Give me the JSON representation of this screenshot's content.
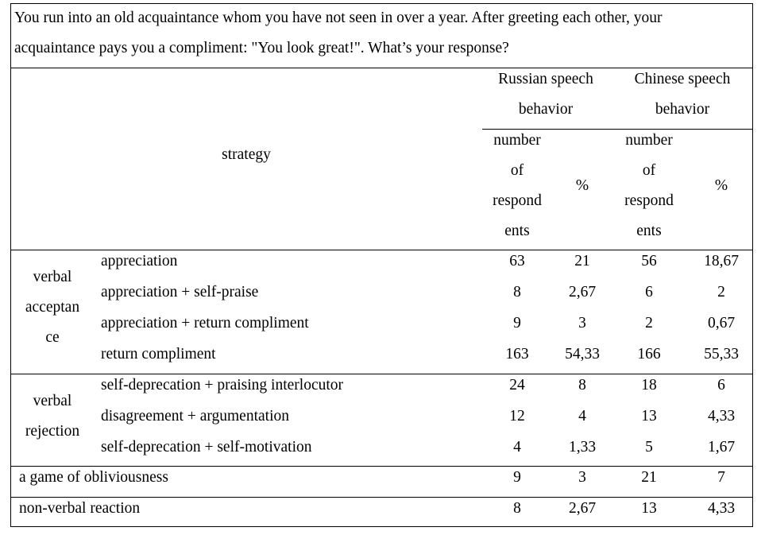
{
  "question": {
    "line1": "You run into an old acquaintance whom you have not seen in over a year. After greeting each other, your",
    "line2": "acquaintance pays you a compliment: \"You look great!\". What’s your response?"
  },
  "header": {
    "strategy": "strategy",
    "russian": [
      "Russian speech",
      "behavior"
    ],
    "chinese": [
      "Chinese speech",
      "behavior"
    ],
    "number_label": [
      "number",
      "of",
      "respond",
      "ents"
    ],
    "percent": "%"
  },
  "groups": {
    "acceptance": [
      "verbal",
      "acceptan",
      "ce"
    ],
    "rejection": [
      "verbal",
      "rejection"
    ]
  },
  "rows": [
    {
      "strategy": "appreciation",
      "ru_n": "63",
      "ru_p": "21",
      "cn_n": "56",
      "cn_p": "18,67"
    },
    {
      "strategy": "appreciation + self-praise",
      "ru_n": "8",
      "ru_p": "2,67",
      "cn_n": "6",
      "cn_p": "2"
    },
    {
      "strategy": "appreciation + return compliment",
      "ru_n": "9",
      "ru_p": "3",
      "cn_n": "2",
      "cn_p": "0,67"
    },
    {
      "strategy": "return compliment",
      "ru_n": "163",
      "ru_p": "54,33",
      "cn_n": "166",
      "cn_p": "55,33"
    },
    {
      "strategy": "self-deprecation + praising interlocutor",
      "ru_n": "24",
      "ru_p": "8",
      "cn_n": "18",
      "cn_p": "6"
    },
    {
      "strategy": "disagreement + argumentation",
      "ru_n": "12",
      "ru_p": "4",
      "cn_n": "13",
      "cn_p": "4,33"
    },
    {
      "strategy": "self-deprecation + self-motivation",
      "ru_n": "4",
      "ru_p": "1,33",
      "cn_n": "5",
      "cn_p": "1,67"
    },
    {
      "strategy": "a game of obliviousness",
      "ru_n": "9",
      "ru_p": "3",
      "cn_n": "21",
      "cn_p": "7"
    },
    {
      "strategy": "non-verbal reaction",
      "ru_n": "8",
      "ru_p": "2,67",
      "cn_n": "13",
      "cn_p": "4,33"
    }
  ]
}
